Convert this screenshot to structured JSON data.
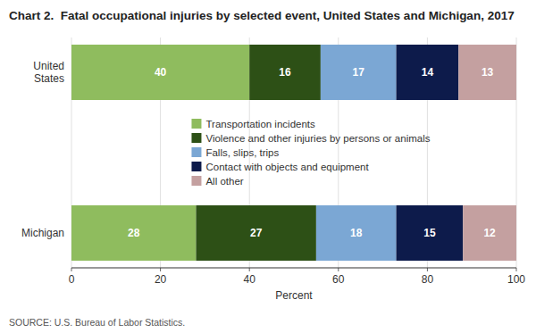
{
  "chart_data": {
    "type": "bar",
    "orientation": "horizontal",
    "stacked": true,
    "data_labels": true,
    "grid": true,
    "legend": "center",
    "title": "Chart 2.  Fatal occupational injuries by selected event, United States and Michigan, 2017",
    "categories": [
      "United\nStates",
      "Michigan"
    ],
    "series": [
      {
        "name": "Transportation incidents",
        "color": "#8fbc5e",
        "values": [
          40,
          28
        ]
      },
      {
        "name": "Violence and other injuries by persons or animals",
        "color": "#2d5016",
        "values": [
          16,
          27
        ]
      },
      {
        "name": "Falls, slips, trips",
        "color": "#7ba7d4",
        "values": [
          17,
          18
        ]
      },
      {
        "name": "Contact with objects and equipment",
        "color": "#0d1b4b",
        "values": [
          14,
          15
        ]
      },
      {
        "name": "All other",
        "color": "#c4a0a0",
        "values": [
          13,
          12
        ]
      }
    ],
    "xlabel": "Percent",
    "xlim": [
      0,
      100
    ],
    "xticks": [
      0,
      20,
      40,
      60,
      80,
      100
    ],
    "source": "SOURCE: U.S. Bureau of Labor Statistics."
  }
}
